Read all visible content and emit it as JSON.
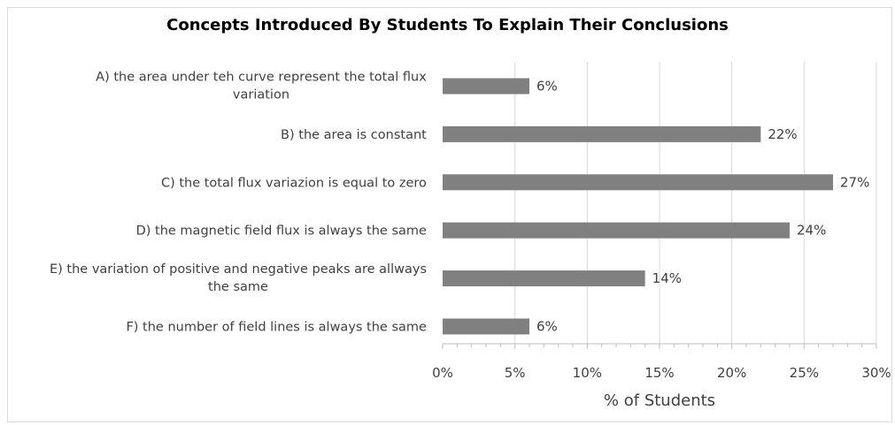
{
  "chart_data": {
    "type": "bar",
    "orientation": "horizontal",
    "title": "Concepts Introduced By Students To Explain Their Conclusions",
    "xlabel": "% of Students",
    "ylabel": "",
    "xlim": [
      0,
      30
    ],
    "x_tick_step": 5,
    "tick_labels": [
      "0%",
      "5%",
      "10%",
      "15%",
      "20%",
      "25%",
      "30%"
    ],
    "grid": true,
    "bar_color": "#808080",
    "categories": [
      [
        "A) the area under teh curve represent the total flux",
        "variation"
      ],
      [
        "B) the area is constant"
      ],
      [
        "C) the total flux variazion is equal to zero"
      ],
      [
        "D) the magnetic field flux is always the same"
      ],
      [
        "E) the variation of positive and negative peaks are allways",
        "the same"
      ],
      [
        "F) the number of field lines is always the same"
      ]
    ],
    "values": [
      6,
      22,
      27,
      24,
      14,
      6
    ],
    "data_labels": [
      "6%",
      "22%",
      "27%",
      "24%",
      "14%",
      "6%"
    ]
  }
}
